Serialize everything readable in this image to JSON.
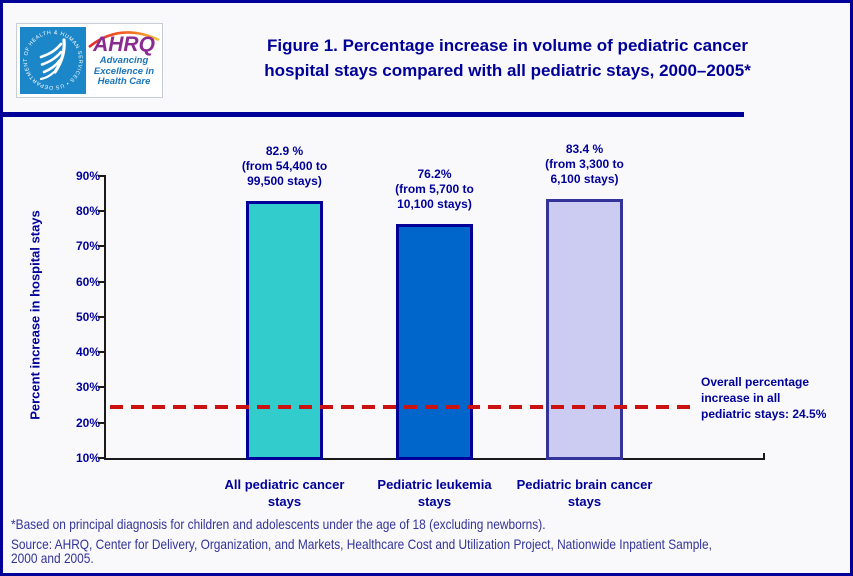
{
  "header": {
    "logo": {
      "seal_text": "DEPARTMENT OF HEALTH & HUMAN SERVICES • USA",
      "ahrq": "AHRQ",
      "tagline1": "Advancing",
      "tagline2": "Excellence in",
      "tagline3": "Health Care"
    },
    "title_line1": "Figure 1. Percentage increase in volume of pediatric cancer",
    "title_line2": "hospital stays compared with all pediatric stays, 2000–2005*"
  },
  "chart_data": {
    "type": "bar",
    "title": "Figure 1. Percentage increase in volume of pediatric cancer hospital stays compared with all pediatric stays, 2000–2005*",
    "categories": [
      "All pediatric cancer stays",
      "Pediatric leukemia stays",
      "Pediatric brain cancer stays"
    ],
    "category_lines": [
      [
        "All pediatric cancer",
        "stays"
      ],
      [
        "Pediatric leukemia",
        "stays"
      ],
      [
        "Pediatric brain cancer",
        "stays"
      ]
    ],
    "values": [
      82.9,
      76.2,
      83.4
    ],
    "bar_labels": [
      {
        "line1": "82.9 %",
        "line2": "(from 54,400 to",
        "line3": "99,500 stays)"
      },
      {
        "line1": "76.2%",
        "line2": "(from 5,700 to",
        "line3": "10,100 stays)"
      },
      {
        "line1": "83.4 %",
        "line2": "(from 3,300 to",
        "line3": "6,100 stays)"
      }
    ],
    "xlabel": "",
    "ylabel": "Percent increase in hospital stays",
    "yticks": [
      "90%",
      "80%",
      "70%",
      "60%",
      "50%",
      "40%",
      "30%",
      "20%",
      "10%"
    ],
    "ylim": [
      10,
      90
    ],
    "grid": false,
    "legend": "none",
    "bar_colors": [
      "#33CCCC",
      "#0066CC",
      "#CCCCF2"
    ],
    "bar_border_colors": [
      "#000099",
      "#000099",
      "#333399"
    ],
    "reference_line": {
      "value": 24.5,
      "style": "dashed",
      "color": "#CC1111",
      "label_line1": "Overall percentage",
      "label_line2": "increase in all",
      "label_line3": "pediatric stays: 24.5%"
    }
  },
  "footnotes": {
    "note": "*Based on principal diagnosis for children and adolescents under the age of 18 (excluding newborns).",
    "source_line1": "Source: AHRQ, Center for Delivery, Organization, and Markets, Healthcare Cost and Utilization Project, Nationwide Inpatient Sample,",
    "source_line2": "2000 and 2005."
  }
}
